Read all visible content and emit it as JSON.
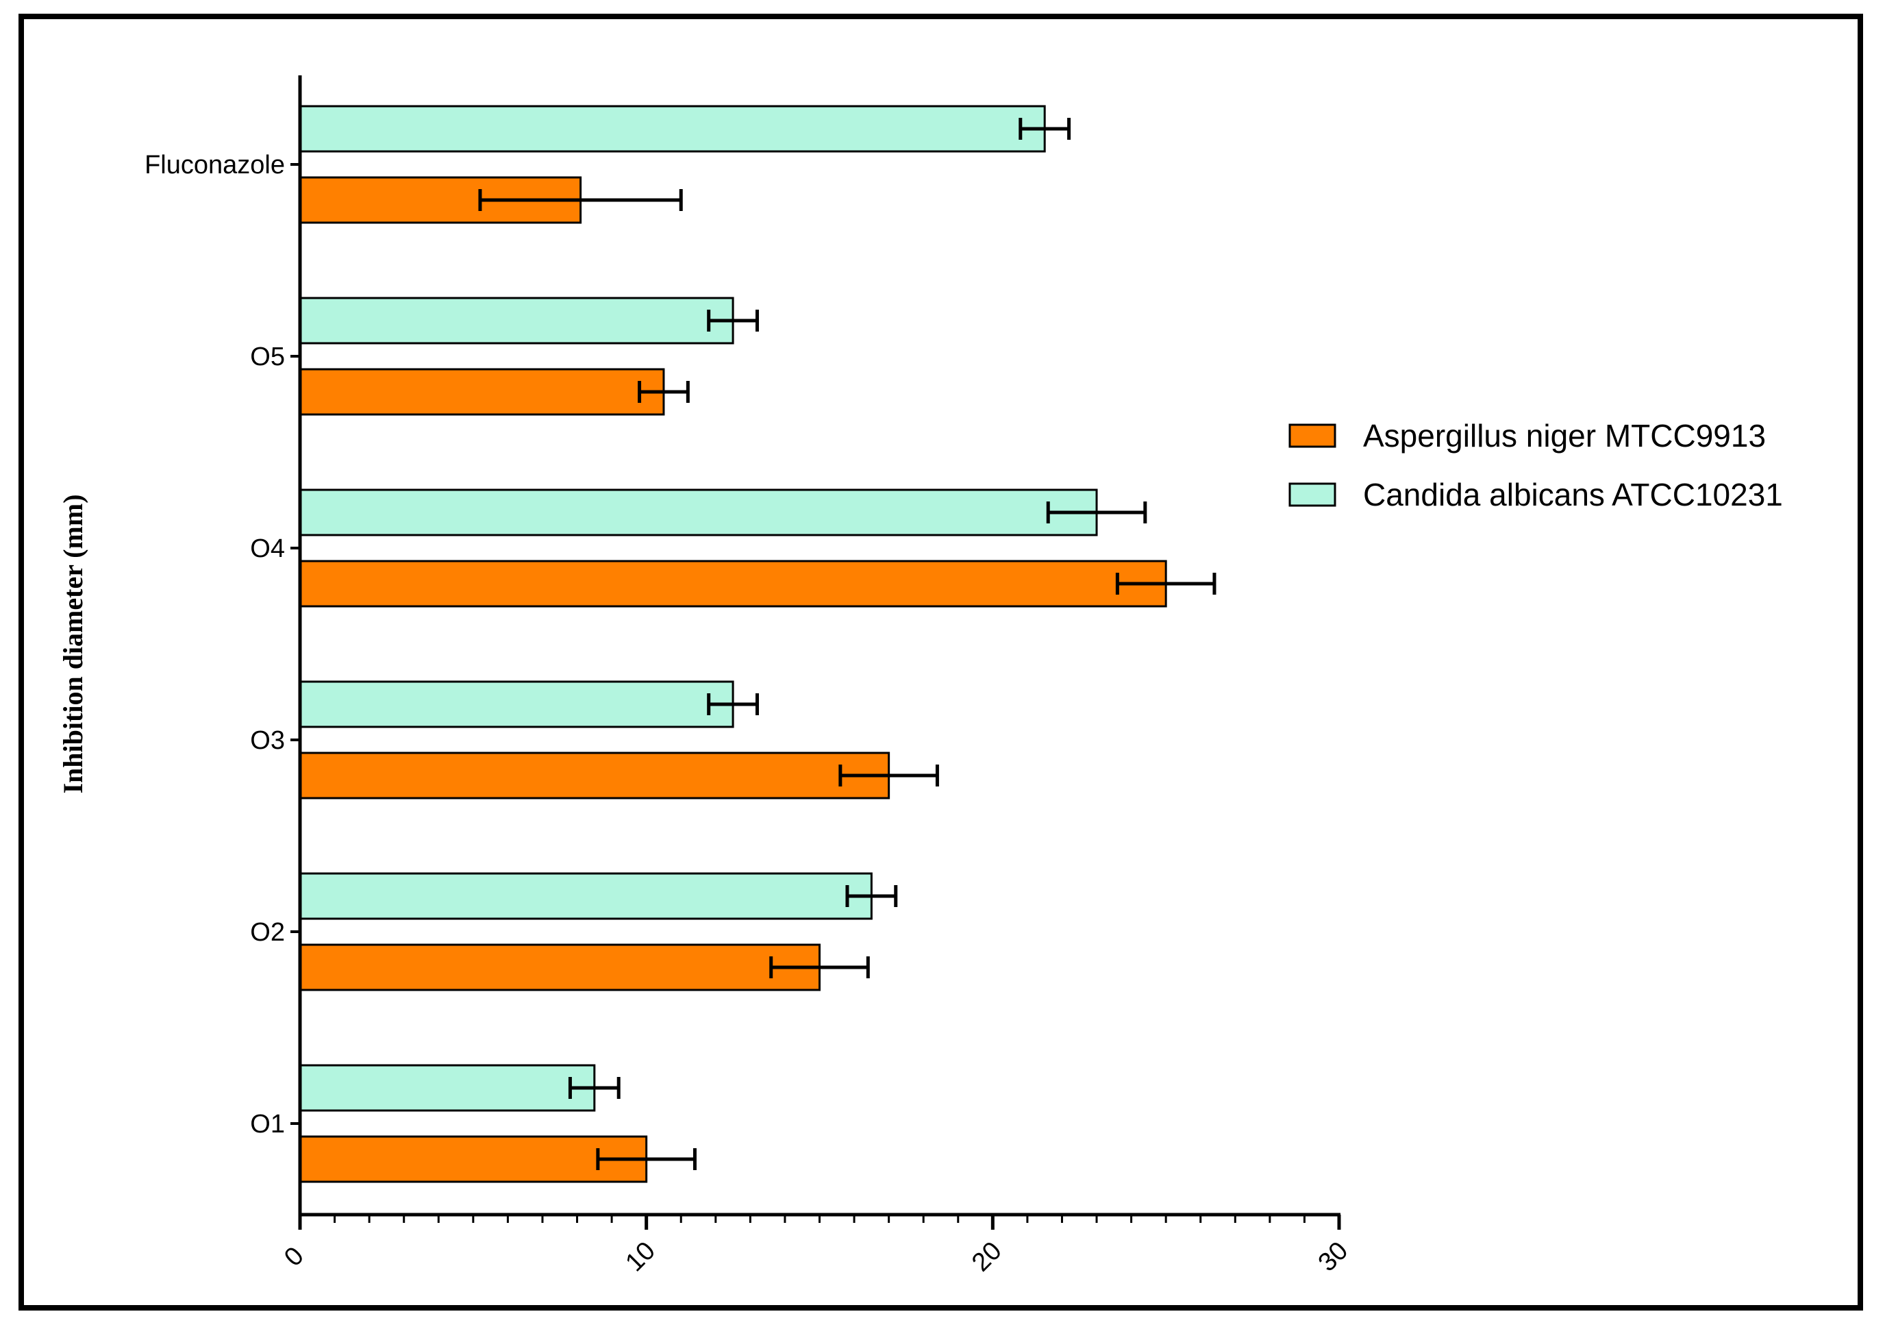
{
  "chart_data": {
    "type": "bar",
    "orientation": "horizontal",
    "title": "",
    "xlabel": "",
    "ylabel": "Inhibition diameter (mm)",
    "xlim": [
      0,
      30
    ],
    "x_ticks": [
      "0",
      "10",
      "20",
      "30"
    ],
    "categories": [
      "O1",
      "O2",
      "O3",
      "O4",
      "O5",
      "Fluconazole"
    ],
    "series": [
      {
        "name": "Aspergillus niger MTCC9913",
        "color": "#ff8000",
        "values": [
          10,
          15,
          17,
          25,
          10.5,
          8.1
        ],
        "errors": [
          1.4,
          1.4,
          1.4,
          1.4,
          0.7,
          2.9
        ]
      },
      {
        "name": "Candida albicans ATCC10231",
        "color": "#b3f5df",
        "values": [
          8.5,
          16.5,
          12.5,
          23,
          12.5,
          21.5
        ],
        "errors": [
          0.7,
          0.7,
          0.7,
          1.4,
          0.7,
          0.7
        ]
      }
    ],
    "legend_position": "right"
  }
}
